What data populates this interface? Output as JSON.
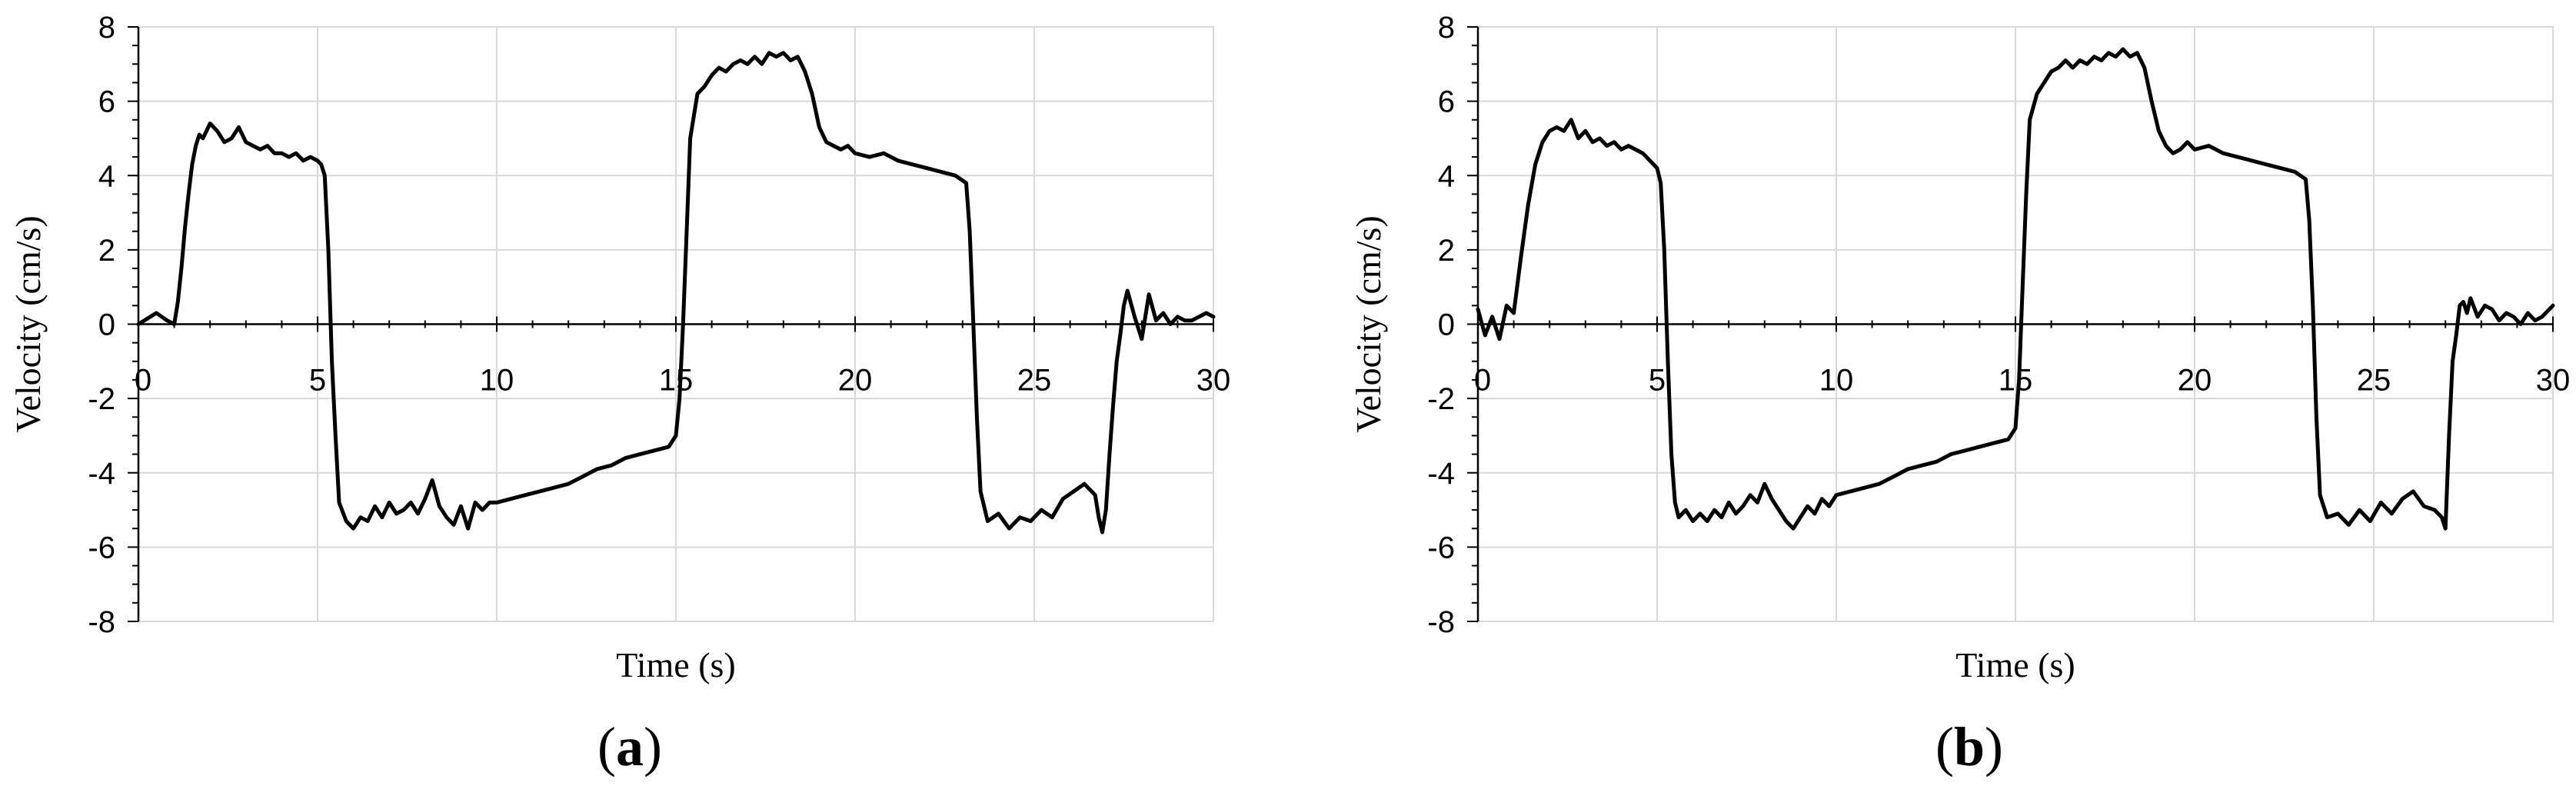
{
  "chart_data": [
    {
      "type": "line",
      "panel_label": "(a)",
      "title": "",
      "xlabel": "Time (s)",
      "ylabel": "Velocity (cm/s)",
      "xlim": [
        0,
        30
      ],
      "ylim": [
        -8,
        8
      ],
      "xticks": [
        "0",
        "5",
        "10",
        "15",
        "20",
        "25",
        "30"
      ],
      "yticks": [
        "8",
        "6",
        "4",
        "2",
        "0",
        "-2",
        "-4",
        "-6",
        "-8"
      ],
      "grid": true,
      "legend": "none",
      "series": [
        {
          "x": [
            0,
            0.5,
            0.8,
            1.0,
            1.1,
            1.2,
            1.3,
            1.4,
            1.5,
            1.6,
            1.7,
            1.8,
            2.0,
            2.2,
            2.4,
            2.6,
            2.8,
            3.0,
            3.2,
            3.4,
            3.6,
            3.8,
            4.0,
            4.2,
            4.4,
            4.6,
            4.8,
            5.0,
            5.1,
            5.2,
            5.3,
            5.4,
            5.5,
            5.6,
            5.8,
            6.0,
            6.2,
            6.4,
            6.6,
            6.8,
            7.0,
            7.2,
            7.4,
            7.6,
            7.8,
            8.0,
            8.2,
            8.4,
            8.6,
            8.8,
            9.0,
            9.2,
            9.4,
            9.6,
            9.8,
            10.0,
            10.4,
            10.8,
            11.2,
            11.6,
            12.0,
            12.4,
            12.8,
            13.2,
            13.6,
            14.0,
            14.4,
            14.8,
            15.0,
            15.1,
            15.2,
            15.3,
            15.4,
            15.6,
            15.8,
            16.0,
            16.2,
            16.4,
            16.6,
            16.8,
            17.0,
            17.2,
            17.4,
            17.6,
            17.8,
            18.0,
            18.2,
            18.4,
            18.6,
            18.8,
            19.0,
            19.2,
            19.4,
            19.6,
            19.8,
            20.0,
            20.4,
            20.8,
            21.2,
            21.6,
            22.0,
            22.4,
            22.8,
            23.1,
            23.2,
            23.3,
            23.4,
            23.5,
            23.7,
            24.0,
            24.3,
            24.6,
            24.9,
            25.2,
            25.5,
            25.8,
            26.1,
            26.4,
            26.7,
            26.8,
            26.9,
            27.0,
            27.1,
            27.2,
            27.3,
            27.4,
            27.5,
            27.6,
            27.8,
            28.0,
            28.2,
            28.4,
            28.6,
            28.8,
            29.0,
            29.2,
            29.4,
            29.6,
            29.8,
            30.0
          ],
          "y": [
            0.0,
            0.3,
            0.1,
            0.0,
            0.6,
            1.5,
            2.6,
            3.5,
            4.3,
            4.8,
            5.1,
            5.0,
            5.4,
            5.2,
            4.9,
            5.0,
            5.3,
            4.9,
            4.8,
            4.7,
            4.8,
            4.6,
            4.6,
            4.5,
            4.6,
            4.4,
            4.5,
            4.4,
            4.3,
            4.0,
            2.0,
            -1.0,
            -3.0,
            -4.8,
            -5.3,
            -5.5,
            -5.2,
            -5.3,
            -4.9,
            -5.2,
            -4.8,
            -5.1,
            -5.0,
            -4.8,
            -5.1,
            -4.7,
            -4.2,
            -4.9,
            -5.2,
            -5.4,
            -4.9,
            -5.5,
            -4.8,
            -5.0,
            -4.8,
            -4.8,
            -4.7,
            -4.6,
            -4.5,
            -4.4,
            -4.3,
            -4.1,
            -3.9,
            -3.8,
            -3.6,
            -3.5,
            -3.4,
            -3.3,
            -3.0,
            -2.0,
            0.0,
            2.5,
            5.0,
            6.2,
            6.4,
            6.7,
            6.9,
            6.8,
            7.0,
            7.1,
            7.0,
            7.2,
            7.0,
            7.3,
            7.2,
            7.3,
            7.1,
            7.2,
            6.8,
            6.2,
            5.3,
            4.9,
            4.8,
            4.7,
            4.8,
            4.6,
            4.5,
            4.6,
            4.4,
            4.3,
            4.2,
            4.1,
            4.0,
            3.8,
            2.5,
            0.0,
            -2.5,
            -4.5,
            -5.3,
            -5.1,
            -5.5,
            -5.2,
            -5.3,
            -5.0,
            -5.2,
            -4.7,
            -4.5,
            -4.3,
            -4.6,
            -5.2,
            -5.6,
            -5.0,
            -3.5,
            -2.2,
            -1.0,
            -0.3,
            0.5,
            0.9,
            0.2,
            -0.4,
            0.8,
            0.1,
            0.3,
            0.0,
            0.2,
            0.1,
            0.1,
            0.2,
            0.3,
            0.2
          ]
        }
      ]
    },
    {
      "type": "line",
      "panel_label": "(b)",
      "title": "",
      "xlabel": "Time (s)",
      "ylabel": "Velocity (cm/s)",
      "xlim": [
        0,
        30
      ],
      "ylim": [
        -8,
        8
      ],
      "xticks": [
        "0",
        "5",
        "10",
        "15",
        "20",
        "25",
        "30"
      ],
      "yticks": [
        "8",
        "6",
        "4",
        "2",
        "0",
        "-2",
        "-4",
        "-6",
        "-8"
      ],
      "grid": true,
      "legend": "none",
      "series": [
        {
          "x": [
            0,
            0.2,
            0.4,
            0.6,
            0.8,
            1.0,
            1.2,
            1.4,
            1.6,
            1.8,
            2.0,
            2.2,
            2.4,
            2.6,
            2.8,
            3.0,
            3.2,
            3.4,
            3.6,
            3.8,
            4.0,
            4.2,
            4.4,
            4.6,
            4.8,
            5.0,
            5.1,
            5.2,
            5.3,
            5.4,
            5.5,
            5.6,
            5.8,
            6.0,
            6.2,
            6.4,
            6.6,
            6.8,
            7.0,
            7.2,
            7.4,
            7.6,
            7.8,
            8.0,
            8.2,
            8.4,
            8.6,
            8.8,
            9.0,
            9.2,
            9.4,
            9.6,
            9.8,
            10.0,
            10.4,
            10.8,
            11.2,
            11.6,
            12.0,
            12.4,
            12.8,
            13.2,
            13.6,
            14.0,
            14.4,
            14.8,
            15.0,
            15.1,
            15.2,
            15.3,
            15.4,
            15.6,
            15.8,
            16.0,
            16.2,
            16.4,
            16.6,
            16.8,
            17.0,
            17.2,
            17.4,
            17.6,
            17.8,
            18.0,
            18.2,
            18.4,
            18.6,
            18.8,
            19.0,
            19.2,
            19.4,
            19.6,
            19.8,
            20.0,
            20.4,
            20.8,
            21.2,
            21.6,
            22.0,
            22.4,
            22.8,
            23.1,
            23.2,
            23.3,
            23.4,
            23.5,
            23.7,
            24.0,
            24.3,
            24.6,
            24.9,
            25.2,
            25.5,
            25.8,
            26.1,
            26.4,
            26.7,
            26.9,
            27.0,
            27.1,
            27.2,
            27.3,
            27.4,
            27.5,
            27.6,
            27.7,
            27.9,
            28.1,
            28.3,
            28.5,
            28.7,
            28.9,
            29.1,
            29.3,
            29.5,
            29.7,
            29.9,
            30.0
          ],
          "y": [
            0.4,
            -0.3,
            0.2,
            -0.4,
            0.5,
            0.3,
            1.8,
            3.2,
            4.3,
            4.9,
            5.2,
            5.3,
            5.2,
            5.5,
            5.0,
            5.2,
            4.9,
            5.0,
            4.8,
            4.9,
            4.7,
            4.8,
            4.7,
            4.6,
            4.4,
            4.2,
            3.8,
            2.0,
            -1.0,
            -3.5,
            -4.8,
            -5.2,
            -5.0,
            -5.3,
            -5.1,
            -5.3,
            -5.0,
            -5.2,
            -4.8,
            -5.1,
            -4.9,
            -4.6,
            -4.8,
            -4.3,
            -4.7,
            -5.0,
            -5.3,
            -5.5,
            -5.2,
            -4.9,
            -5.1,
            -4.7,
            -4.9,
            -4.6,
            -4.5,
            -4.4,
            -4.3,
            -4.1,
            -3.9,
            -3.8,
            -3.7,
            -3.5,
            -3.4,
            -3.3,
            -3.2,
            -3.1,
            -2.8,
            -1.5,
            1.0,
            3.5,
            5.5,
            6.2,
            6.5,
            6.8,
            6.9,
            7.1,
            6.9,
            7.1,
            7.0,
            7.2,
            7.1,
            7.3,
            7.2,
            7.4,
            7.2,
            7.3,
            6.9,
            6.0,
            5.2,
            4.8,
            4.6,
            4.7,
            4.9,
            4.7,
            4.8,
            4.6,
            4.5,
            4.4,
            4.3,
            4.2,
            4.1,
            3.9,
            2.8,
            0.5,
            -2.5,
            -4.6,
            -5.2,
            -5.1,
            -5.4,
            -5.0,
            -5.3,
            -4.8,
            -5.1,
            -4.7,
            -4.5,
            -4.9,
            -5.0,
            -5.2,
            -5.5,
            -3.0,
            -1.0,
            -0.3,
            0.5,
            0.6,
            0.3,
            0.7,
            0.2,
            0.5,
            0.4,
            0.1,
            0.3,
            0.2,
            0.0,
            0.3,
            0.1,
            0.2,
            0.4,
            0.5
          ]
        }
      ]
    }
  ]
}
